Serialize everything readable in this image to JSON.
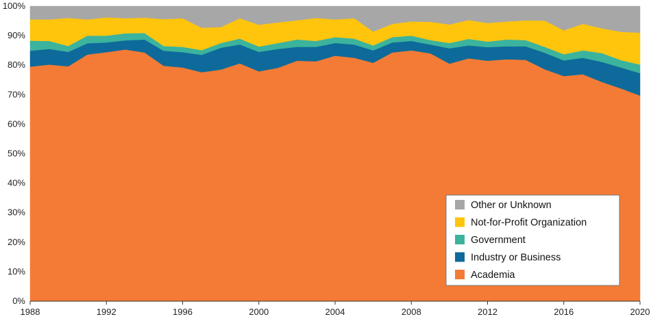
{
  "chart_data": {
    "type": "area",
    "stacked": true,
    "normalized_percent": true,
    "x": [
      1988,
      1989,
      1990,
      1991,
      1992,
      1993,
      1994,
      1995,
      1996,
      1997,
      1998,
      1999,
      2000,
      2001,
      2002,
      2003,
      2004,
      2005,
      2006,
      2007,
      2008,
      2009,
      2010,
      2011,
      2012,
      2013,
      2014,
      2015,
      2016,
      2017,
      2018,
      2019,
      2020
    ],
    "xticks": [
      "1988",
      "1992",
      "1996",
      "2000",
      "2004",
      "2008",
      "2012",
      "2016",
      "2020"
    ],
    "yticks": [
      "0%",
      "10%",
      "20%",
      "30%",
      "40%",
      "50%",
      "60%",
      "70%",
      "80%",
      "90%",
      "100%"
    ],
    "ylim": [
      0,
      100
    ],
    "title": "",
    "xlabel": "",
    "ylabel": "",
    "legend_position": "bottom-right",
    "series": [
      {
        "name": "Academia",
        "color": "#F47B35",
        "values": [
          79.5,
          80.2,
          79.6,
          83.6,
          84.4,
          85.3,
          84.3,
          79.8,
          79.2,
          77.6,
          78.5,
          80.6,
          77.9,
          79.1,
          81.5,
          81.3,
          83.2,
          82.5,
          80.8,
          84.3,
          85.0,
          84.0,
          80.5,
          82.3,
          81.5,
          82.0,
          81.8,
          78.6,
          76.3,
          76.9,
          74.3,
          72.1,
          69.7
        ]
      },
      {
        "name": "Industry or Business",
        "color": "#0E6A9A",
        "values": [
          5.4,
          5.3,
          4.9,
          3.8,
          3.3,
          3.1,
          4.4,
          5.1,
          5.2,
          5.9,
          7.4,
          6.4,
          6.6,
          6.4,
          4.7,
          4.9,
          4.3,
          4.5,
          4.2,
          3.4,
          3.2,
          3.0,
          5.2,
          4.4,
          4.6,
          4.4,
          4.6,
          5.6,
          5.3,
          5.6,
          6.8,
          7.1,
          7.6
        ]
      },
      {
        "name": "Government",
        "color": "#3CB39C",
        "values": [
          3.4,
          2.7,
          2.0,
          2.6,
          2.3,
          2.4,
          2.2,
          1.6,
          1.8,
          1.6,
          1.6,
          2.0,
          1.8,
          2.0,
          2.5,
          2.0,
          2.0,
          2.0,
          1.7,
          1.8,
          1.8,
          1.5,
          1.8,
          2.2,
          1.9,
          2.3,
          2.1,
          2.0,
          2.1,
          2.5,
          3.0,
          2.5,
          2.9
        ]
      },
      {
        "name": "Not-for-Profit Organization",
        "color": "#FFC50D",
        "values": [
          7.2,
          7.3,
          9.5,
          5.5,
          6.2,
          5.1,
          5.2,
          9.1,
          9.7,
          7.6,
          5.4,
          6.9,
          7.4,
          7.0,
          6.5,
          7.8,
          6.0,
          6.9,
          4.7,
          4.5,
          4.8,
          6.2,
          6.3,
          6.4,
          6.3,
          6.1,
          6.7,
          8.9,
          8.1,
          9.0,
          8.4,
          9.6,
          10.8
        ]
      },
      {
        "name": "Other or Unknown",
        "color": "#A7A7A7",
        "values": [
          4.5,
          4.5,
          4.0,
          4.5,
          3.8,
          4.1,
          3.9,
          4.4,
          4.1,
          7.3,
          7.1,
          4.1,
          6.3,
          5.5,
          4.8,
          4.0,
          4.5,
          4.1,
          8.6,
          6.0,
          5.2,
          5.3,
          6.2,
          4.7,
          5.7,
          5.2,
          4.8,
          4.9,
          8.2,
          6.0,
          7.5,
          8.7,
          9.0
        ]
      }
    ],
    "legend_order": [
      "Other or Unknown",
      "Not-for-Profit Organization",
      "Government",
      "Industry or Business",
      "Academia"
    ]
  }
}
